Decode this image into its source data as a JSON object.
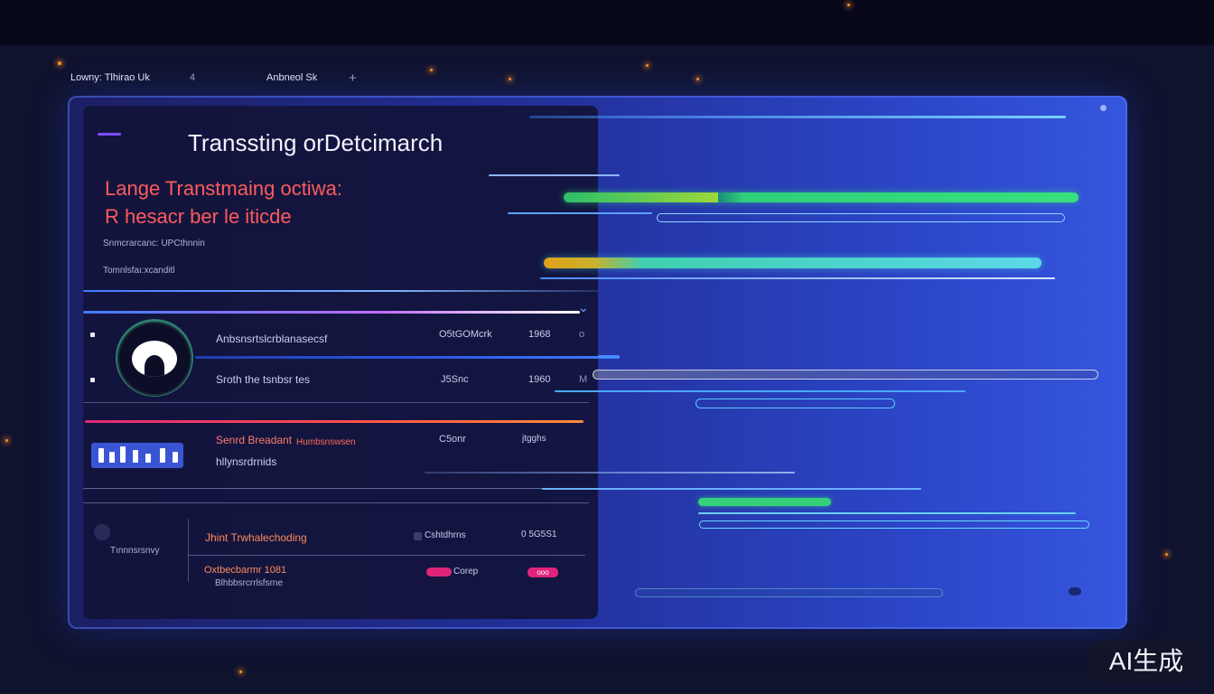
{
  "nav": {
    "item1": "Lowny: Tlhirao Uk",
    "item1_icon": "4",
    "item2": "Anbneol Sk",
    "add_icon": "+"
  },
  "hero": {
    "title": "Transsting orDetcimarch",
    "subtitle_line1": "Lange Transtmaing octiwa:",
    "subtitle_line2": "R  hesacr ber le iticde",
    "meta1": "Snmcrarcanc: UPCthnnin",
    "meta2": "Tomnlsfaı:xcanditl"
  },
  "rows": [
    {
      "label": "Anbsnsrtslcrblanasecsf",
      "value": "O5tGOMcrk",
      "count": "1968",
      "icon": "o"
    },
    {
      "label": "Sroth the tsnbsr tes",
      "value": "J5Snc",
      "count": "1960",
      "icon": "M"
    }
  ],
  "card2": {
    "title": "Senrd Breadant",
    "tag": "Humbsnswsen",
    "subtitle": "hllynsrdrnids",
    "value": "C5onr",
    "value2": "jtgghs"
  },
  "card3": {
    "avatar_label": "Tınnnsrsnvy",
    "row1_title": "Jhint Trwhalechoding",
    "row1_value": "Cshtdhrns",
    "row1_value2": "0 5G5S1",
    "row2_title": "Oxtbecbarmr 1081",
    "row2_sub": "Blhbbsrcrrlsfsrne",
    "row2_value": "Corep",
    "row2_badge": "ooo"
  },
  "watermark": "AI生成"
}
